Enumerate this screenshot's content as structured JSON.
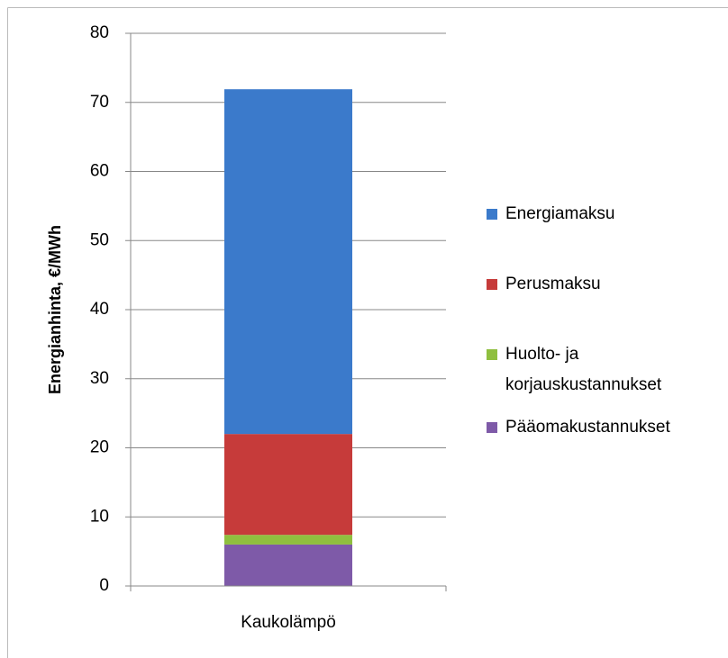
{
  "chart_data": {
    "type": "stacked-bar",
    "y_label": "Energianhinta, €/MWh",
    "categories": [
      "Kaukolämpö"
    ],
    "series": [
      {
        "name": "Pääomakustannukset",
        "color": "#7e5aa8",
        "values": [
          6
        ]
      },
      {
        "name": "Huolto- ja korjauskustannukset",
        "color": "#8fbf3f",
        "values": [
          1.4
        ]
      },
      {
        "name": "Perusmaksu",
        "color": "#c63b3a",
        "values": [
          14.6
        ]
      },
      {
        "name": "Energiamaksu",
        "color": "#3b7acb",
        "values": [
          49.9
        ]
      }
    ],
    "ylim": [
      0,
      80
    ],
    "yticks": [
      0,
      10,
      20,
      30,
      40,
      50,
      60,
      70,
      80
    ],
    "grid": true,
    "legend": "right"
  }
}
